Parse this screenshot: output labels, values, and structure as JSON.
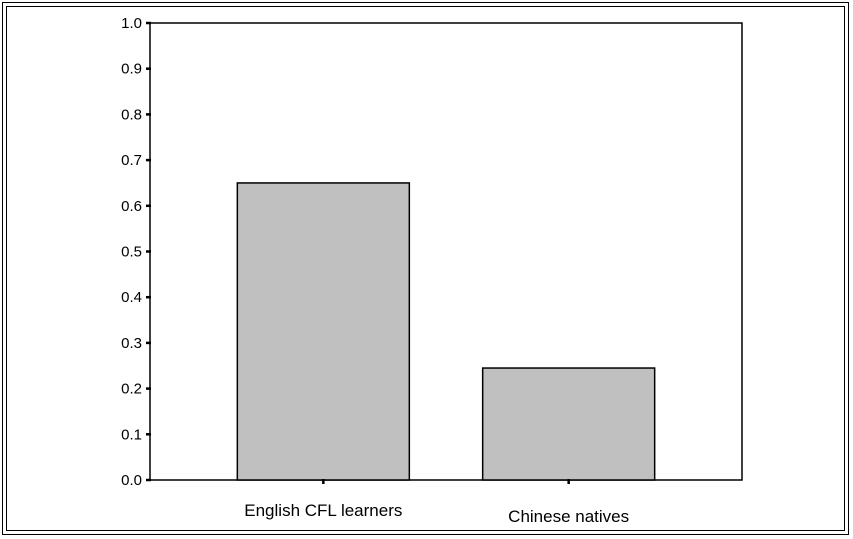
{
  "chart_data": {
    "type": "bar",
    "categories": [
      "English CFL learners",
      "Chinese natives"
    ],
    "values": [
      0.65,
      0.245
    ],
    "title": "",
    "xlabel": "",
    "ylabel": "",
    "ylim": [
      0,
      1.0
    ],
    "yticks": [
      "0.0",
      "0.1",
      "0.2",
      "0.3",
      "0.4",
      "0.5",
      "0.6",
      "0.7",
      "0.8",
      "0.9",
      "1.0"
    ],
    "grid": false,
    "bar_color": "#c0c0c0",
    "bar_edge_color": "#000000"
  }
}
